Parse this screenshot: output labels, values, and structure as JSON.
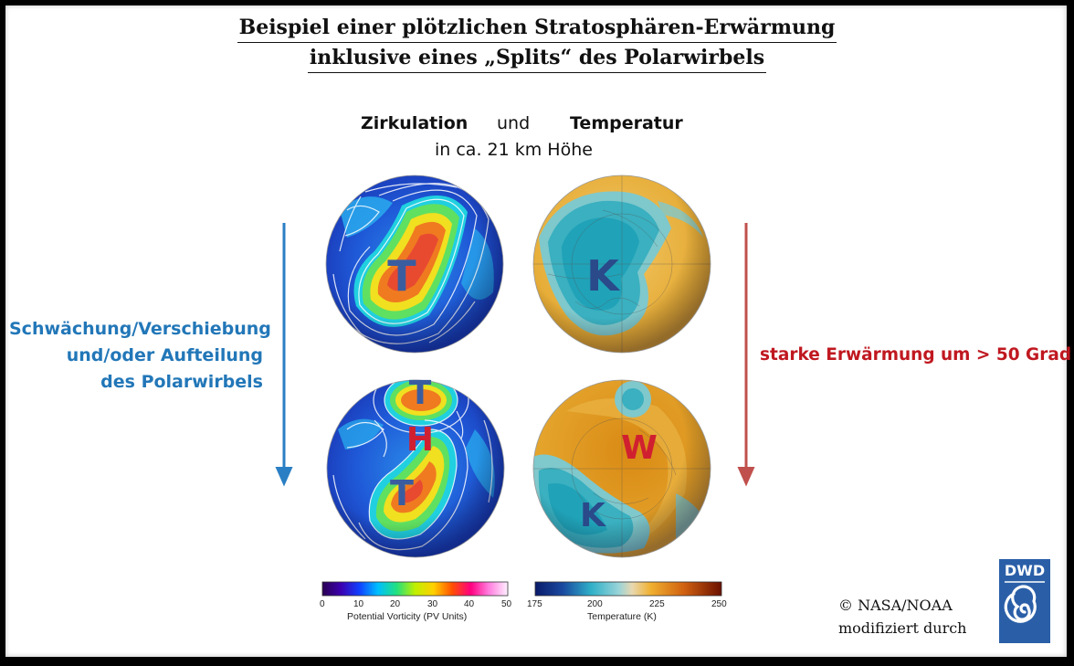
{
  "title_line1": "Beispiel einer plötzlichen Stratosphären-Erwärmung",
  "title_line2": "inklusive eines „Splits“ des Polarwirbels",
  "subtitle": {
    "left": "Zirkulation",
    "middle": "und",
    "right": "Temperatur",
    "line2": "in ca. 21 km Höhe"
  },
  "left_text": [
    "Schwächung/Verschiebung",
    "und/oder Aufteilung",
    "des Polarwirbels"
  ],
  "right_text": "starke Erwärmung um > 50 Grad",
  "globe_labels": {
    "top_left": "T",
    "top_right": "K",
    "bottom_left_top": "T",
    "bottom_left_mid": "H",
    "bottom_left_bottom": "T",
    "bottom_right_w": "W",
    "bottom_right_k": "K"
  },
  "colorbar_pv": {
    "ticks": [
      "0",
      "10",
      "20",
      "30",
      "40",
      "50"
    ],
    "label": "Potential Vorticity (PV Units)"
  },
  "colorbar_temp": {
    "ticks": [
      "175",
      "200",
      "225",
      "250"
    ],
    "label": "Temperature (K)"
  },
  "credit": [
    "© NASA/NOAA",
    "modifiziert durch"
  ],
  "logo_text": "DWD",
  "colors": {
    "left_text": "#2277b8",
    "right_text": "#c01820",
    "left_arrow": "#2a7fc4",
    "right_arrow": "#c0504d",
    "dwd_blue": "#2a5fa8"
  }
}
